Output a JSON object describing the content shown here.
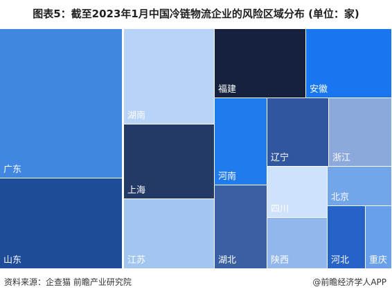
{
  "title": "图表5：截至2023年1月中国冷链物流企业的风险区域分布 (单位：家)",
  "source": "资料来源：企查猫 前瞻产业研究院",
  "brand": "@前瞻经济学人APP",
  "chart_data": {
    "type": "treemap",
    "title": "图表5：截至2023年1月中国冷链物流企业的风险区域分布 (单位：家)",
    "unit": "家",
    "nodes": [
      {
        "name": "广东",
        "color": "#3f87e0"
      },
      {
        "name": "山东",
        "color": "#1e4c98"
      },
      {
        "name": "湖南",
        "color": "#b7d3f7"
      },
      {
        "name": "上海",
        "color": "#243a66"
      },
      {
        "name": "江苏",
        "color": "#a3c6f1"
      },
      {
        "name": "福建",
        "color": "#15213d"
      },
      {
        "name": "安徽",
        "color": "#1877f0"
      },
      {
        "name": "河南",
        "color": "#207bec"
      },
      {
        "name": "辽宁",
        "color": "#30569f"
      },
      {
        "name": "浙江",
        "color": "#8ba9db"
      },
      {
        "name": "湖北",
        "color": "#3a5fa2"
      },
      {
        "name": "四川",
        "color": "#cfe2fb"
      },
      {
        "name": "陕西",
        "color": "#92b7ec"
      },
      {
        "name": "北京",
        "color": "#73a5e9"
      },
      {
        "name": "河北",
        "color": "#2563c6"
      },
      {
        "name": "重庆",
        "color": "#69a0eb"
      }
    ]
  }
}
